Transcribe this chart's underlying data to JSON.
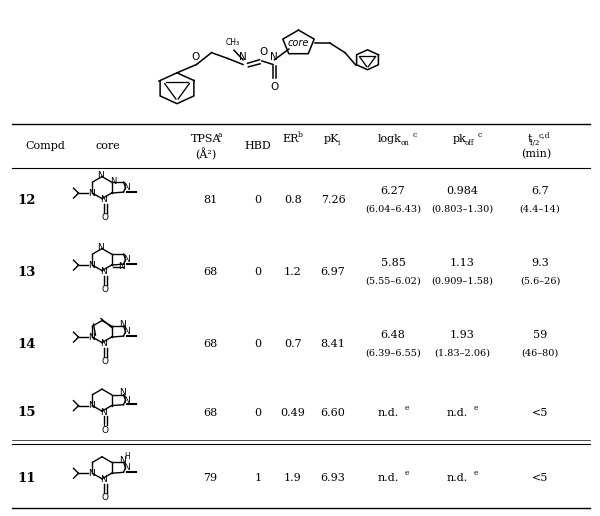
{
  "rows": [
    {
      "compd": "12",
      "tpsa": "81",
      "hbd": "0",
      "er": "0.8",
      "pki": "7.26",
      "logkon_main": "6.27",
      "logkon_ci": "(6.04–6.43)",
      "pkoff_main": "0.984",
      "pkoff_ci": "(0.803–1.30)",
      "thalf_main": "6.7",
      "thalf_ci": "(4.4–14)"
    },
    {
      "compd": "13",
      "tpsa": "68",
      "hbd": "0",
      "er": "1.2",
      "pki": "6.97",
      "logkon_main": "5.85",
      "logkon_ci": "(5.55–6.02)",
      "pkoff_main": "1.13",
      "pkoff_ci": "(0.909–1.58)",
      "thalf_main": "9.3",
      "thalf_ci": "(5.6–26)"
    },
    {
      "compd": "14",
      "tpsa": "68",
      "hbd": "0",
      "er": "0.7",
      "pki": "8.41",
      "logkon_main": "6.48",
      "logkon_ci": "(6.39–6.55)",
      "pkoff_main": "1.93",
      "pkoff_ci": "(1.83–2.06)",
      "thalf_main": "59",
      "thalf_ci": "(46–80)"
    },
    {
      "compd": "15",
      "tpsa": "68",
      "hbd": "0",
      "er": "0.49",
      "pki": "6.60",
      "logkon_main": "n.d.",
      "logkon_ci": "",
      "pkoff_main": "n.d.",
      "pkoff_ci": "",
      "thalf_main": "<5",
      "thalf_ci": ""
    }
  ],
  "row11": {
    "compd": "11",
    "tpsa": "79",
    "hbd": "1",
    "er": "1.9",
    "pki": "6.93",
    "logkon_main": "n.d.",
    "logkon_ci": "",
    "pkoff_main": "n.d.",
    "pkoff_ci": "",
    "thalf_main": "<5",
    "thalf_ci": ""
  },
  "fs": 8.0
}
